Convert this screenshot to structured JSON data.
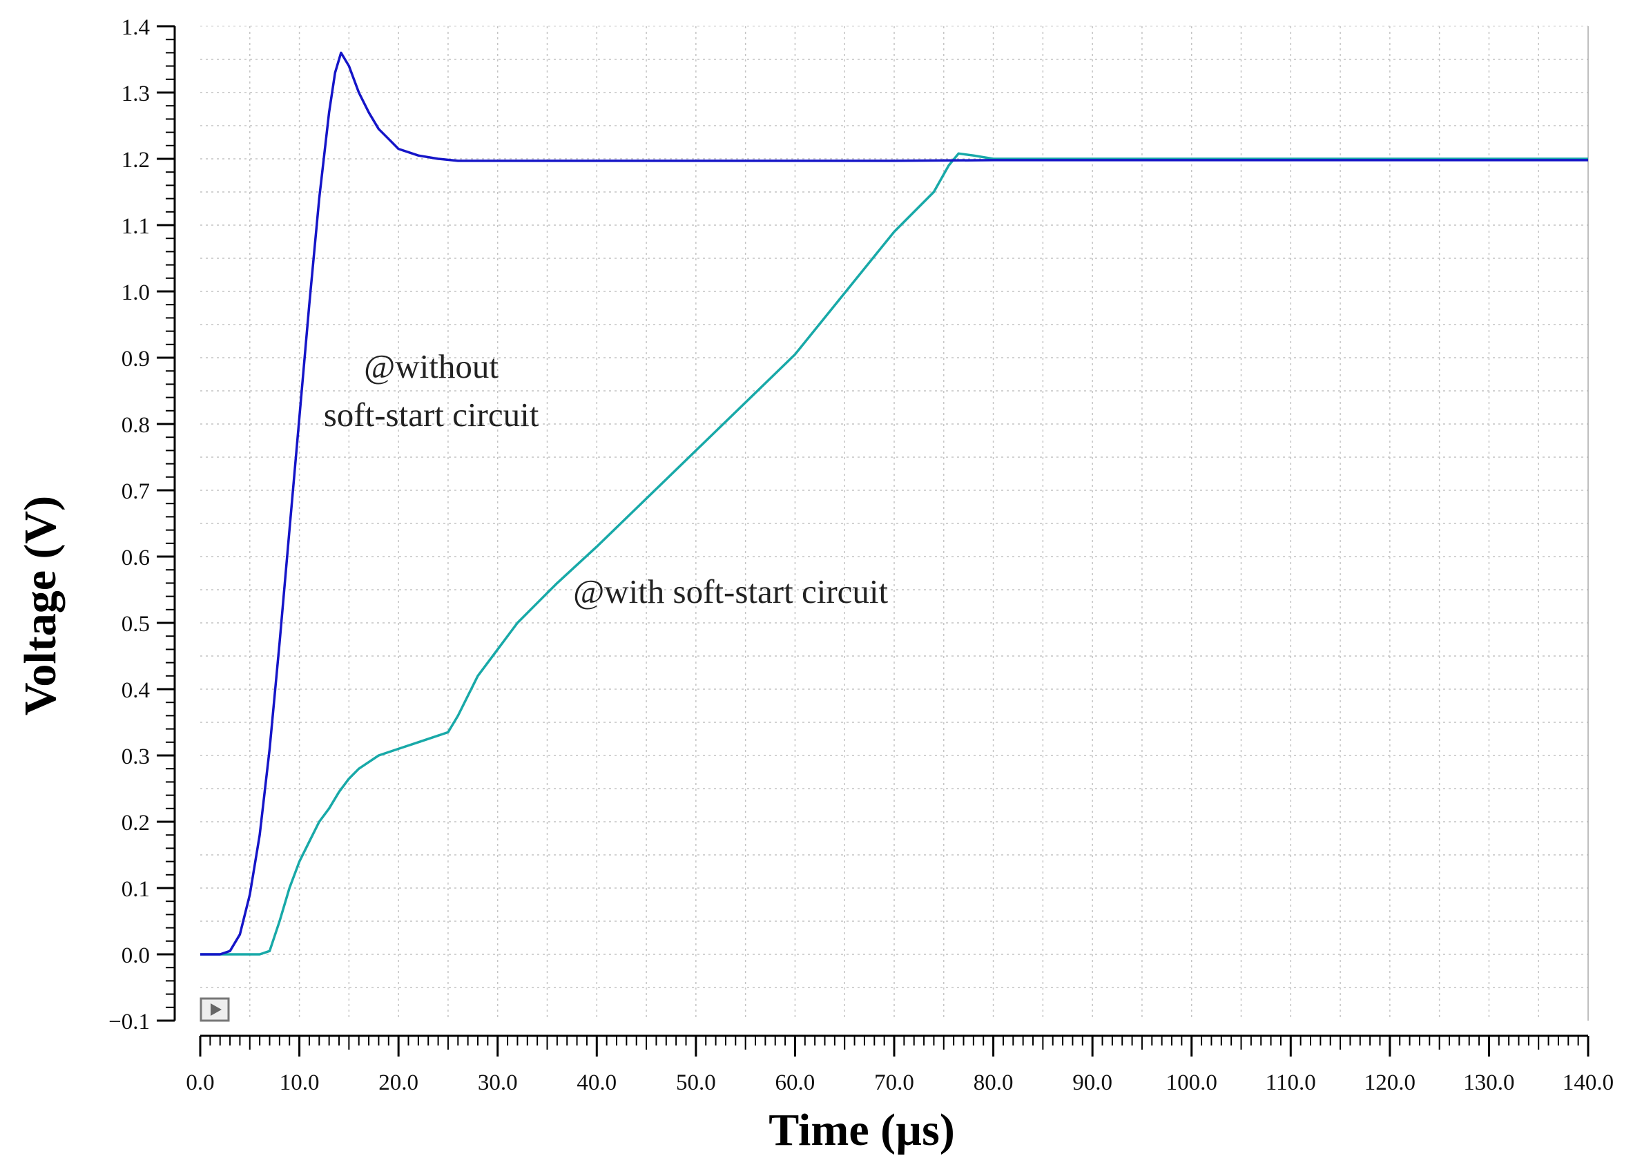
{
  "chart_data": {
    "type": "line",
    "title": "",
    "xlabel": "Time (µs)",
    "ylabel": "Voltage (V)",
    "xlim": [
      0,
      140
    ],
    "ylim": [
      -0.1,
      1.4
    ],
    "grid": true,
    "x_ticks": [
      "0.0",
      "10.0",
      "20.0",
      "30.0",
      "40.0",
      "50.0",
      "60.0",
      "70.0",
      "80.0",
      "90.0",
      "100.0",
      "110.0",
      "120.0",
      "130.0",
      "140.0"
    ],
    "y_ticks": [
      "−0.1",
      "0.0",
      "0.1",
      "0.2",
      "0.3",
      "0.4",
      "0.5",
      "0.6",
      "0.7",
      "0.8",
      "0.9",
      "1.0",
      "1.1",
      "1.2",
      "1.3",
      "1.4"
    ],
    "annotations": [
      {
        "text": [
          "@without",
          "soft-start circuit"
        ],
        "x": 23.3,
        "y": 0.87
      },
      {
        "text": [
          "@with soft-start circuit"
        ],
        "x": 53.5,
        "y": 0.53
      }
    ],
    "series": [
      {
        "color": "#1515c8",
        "points": [
          [
            0,
            0
          ],
          [
            2,
            0
          ],
          [
            3,
            0.005
          ],
          [
            4,
            0.03
          ],
          [
            5,
            0.09
          ],
          [
            6,
            0.18
          ],
          [
            7,
            0.31
          ],
          [
            8,
            0.47
          ],
          [
            9,
            0.64
          ],
          [
            10,
            0.81
          ],
          [
            11,
            0.98
          ],
          [
            12,
            1.14
          ],
          [
            13,
            1.27
          ],
          [
            13.6,
            1.33
          ],
          [
            14.2,
            1.36
          ],
          [
            15,
            1.34
          ],
          [
            16,
            1.3
          ],
          [
            17,
            1.27
          ],
          [
            18,
            1.245
          ],
          [
            19,
            1.23
          ],
          [
            20,
            1.215
          ],
          [
            22,
            1.205
          ],
          [
            24,
            1.2
          ],
          [
            26,
            1.197
          ],
          [
            30,
            1.197
          ],
          [
            40,
            1.197
          ],
          [
            50,
            1.197
          ],
          [
            60,
            1.197
          ],
          [
            70,
            1.197
          ],
          [
            80,
            1.198
          ],
          [
            90,
            1.198
          ],
          [
            100,
            1.198
          ],
          [
            110,
            1.198
          ],
          [
            120,
            1.198
          ],
          [
            130,
            1.198
          ],
          [
            140,
            1.198
          ]
        ]
      },
      {
        "color": "#18a9a8",
        "points": [
          [
            0,
            0
          ],
          [
            4,
            0
          ],
          [
            6,
            0
          ],
          [
            7,
            0.005
          ],
          [
            8,
            0.05
          ],
          [
            9,
            0.1
          ],
          [
            10,
            0.14
          ],
          [
            11,
            0.17
          ],
          [
            12,
            0.2
          ],
          [
            13,
            0.22
          ],
          [
            14,
            0.245
          ],
          [
            15,
            0.265
          ],
          [
            16,
            0.28
          ],
          [
            17,
            0.29
          ],
          [
            18,
            0.3
          ],
          [
            20,
            0.31
          ],
          [
            22,
            0.32
          ],
          [
            24,
            0.33
          ],
          [
            25,
            0.335
          ],
          [
            26,
            0.36
          ],
          [
            27,
            0.39
          ],
          [
            28,
            0.42
          ],
          [
            30,
            0.46
          ],
          [
            32,
            0.5
          ],
          [
            34,
            0.53
          ],
          [
            36,
            0.56
          ],
          [
            40,
            0.615
          ],
          [
            50,
            0.76
          ],
          [
            60,
            0.905
          ],
          [
            70,
            1.09
          ],
          [
            74,
            1.15
          ],
          [
            75.5,
            1.19
          ],
          [
            76.5,
            1.208
          ],
          [
            78,
            1.205
          ],
          [
            80,
            1.2
          ],
          [
            90,
            1.2
          ],
          [
            100,
            1.2
          ],
          [
            110,
            1.2
          ],
          [
            120,
            1.2
          ],
          [
            130,
            1.2
          ],
          [
            140,
            1.2
          ]
        ]
      }
    ]
  }
}
